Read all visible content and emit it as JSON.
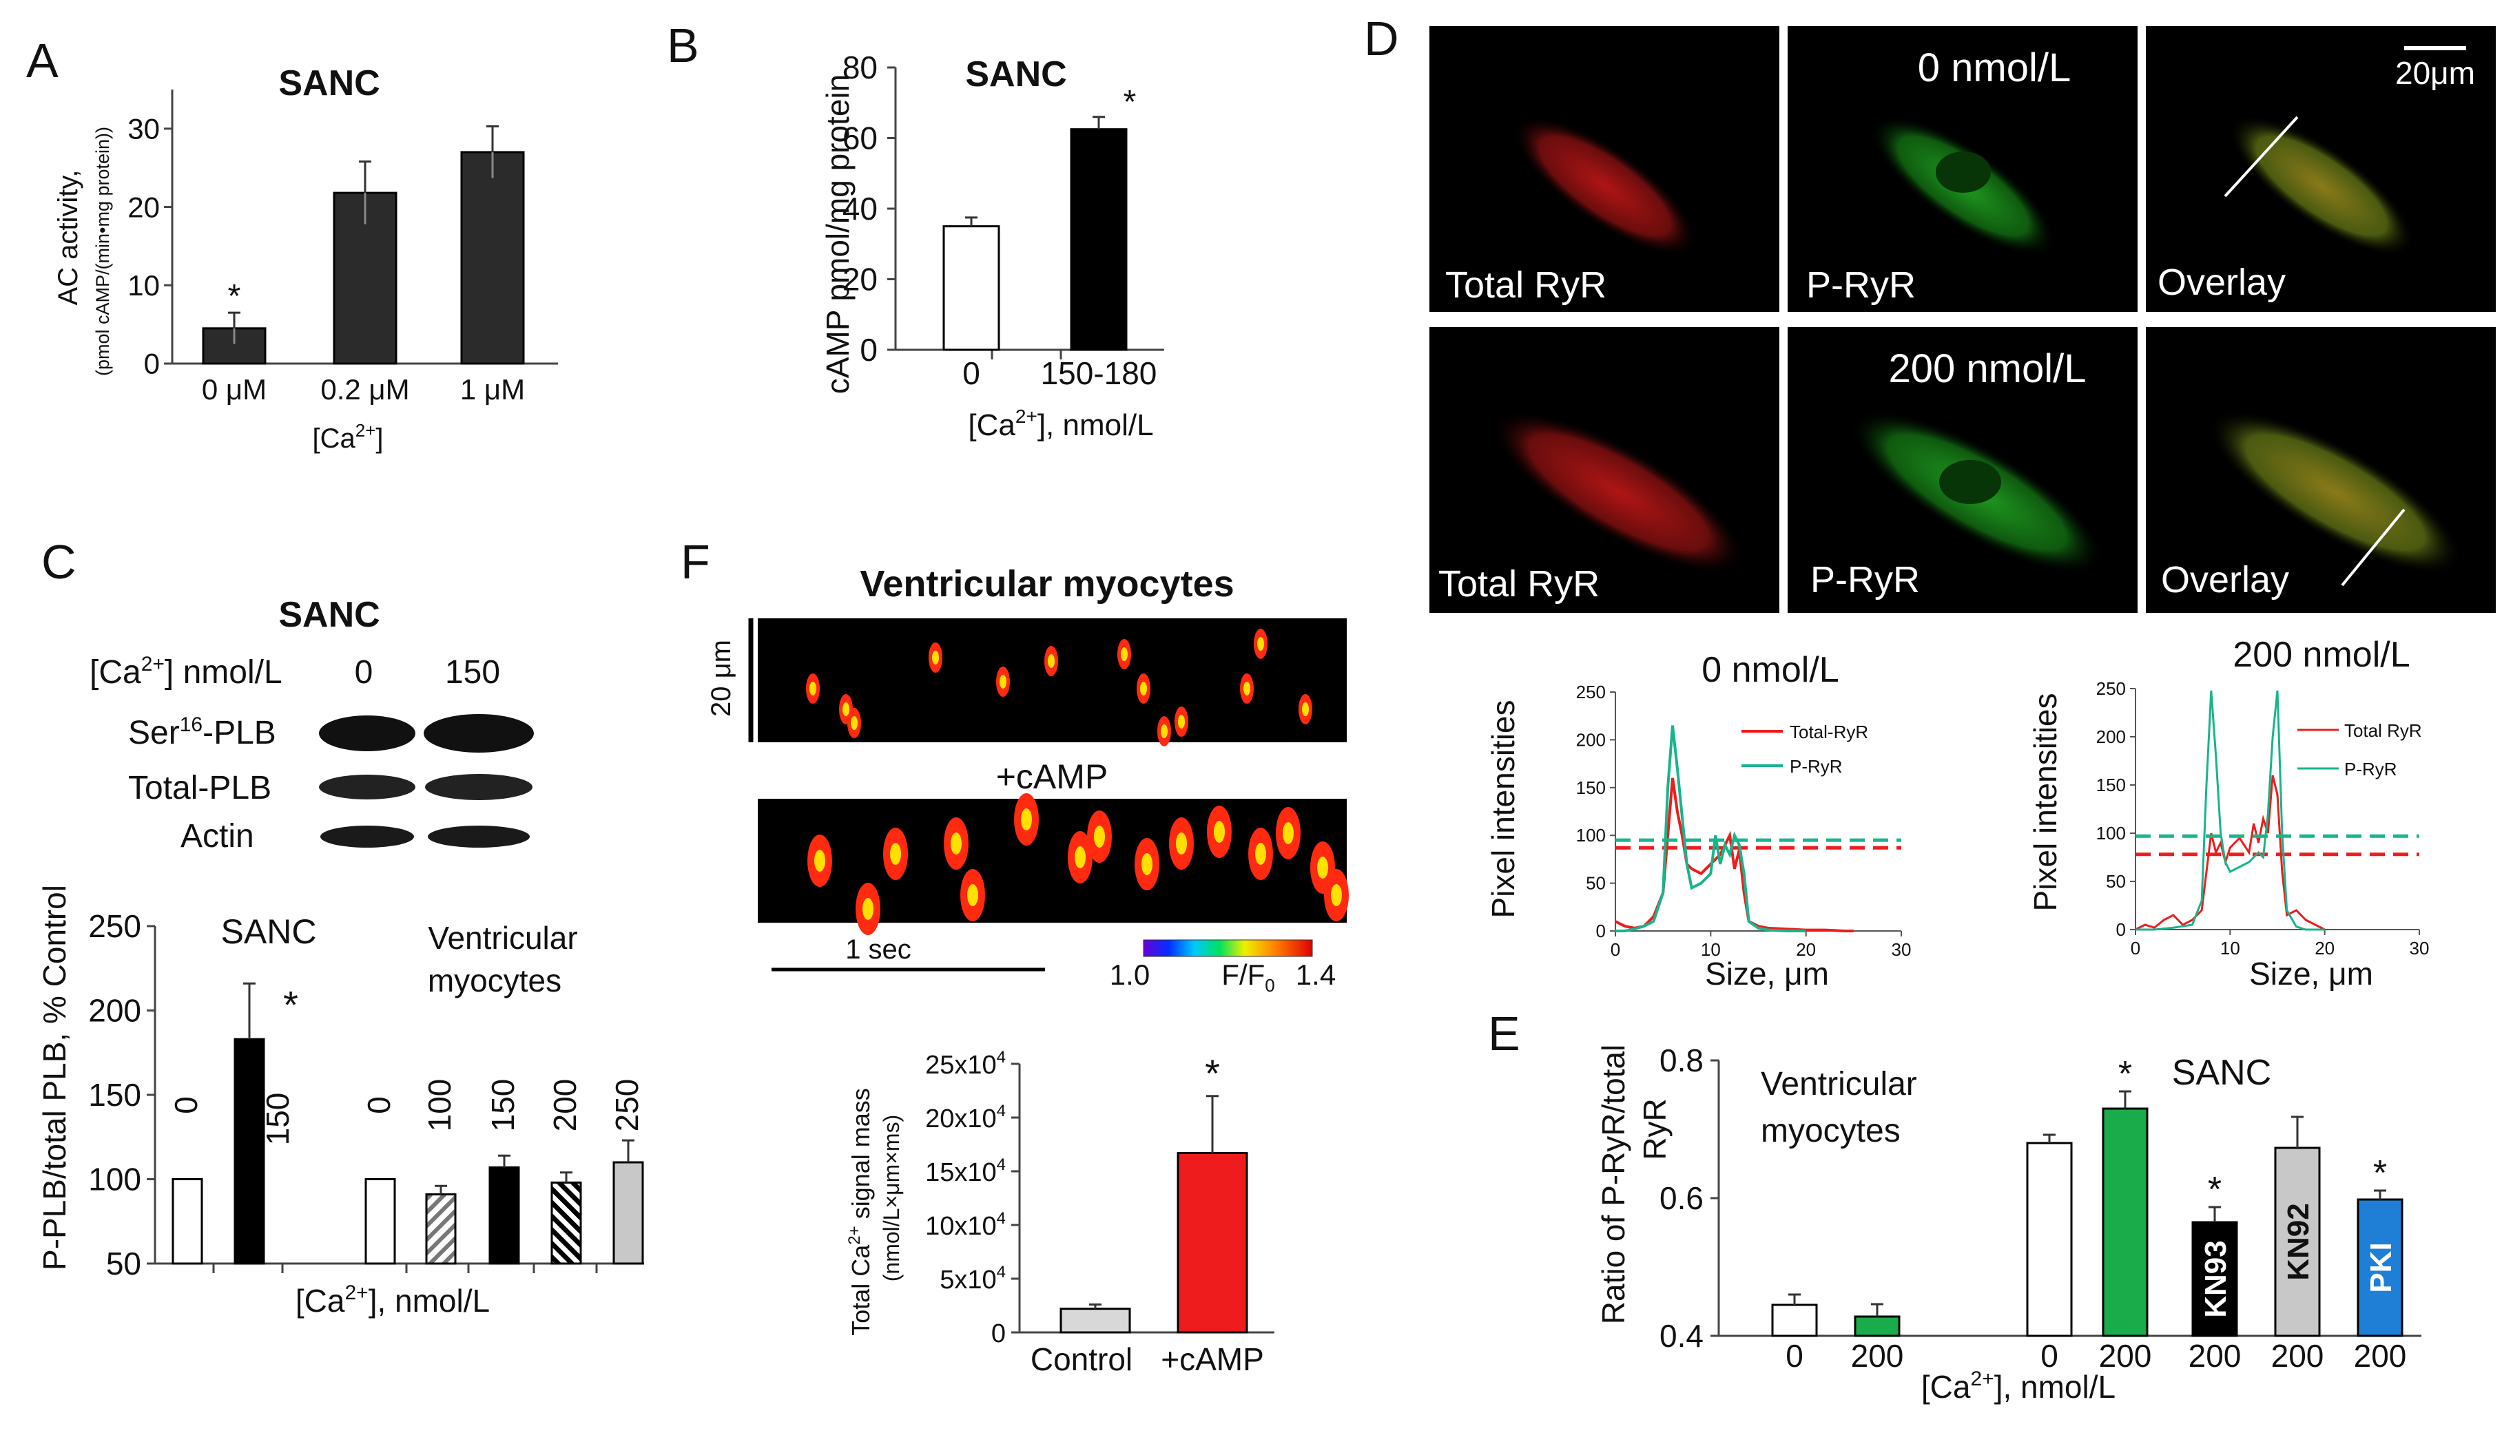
{
  "panels": {
    "A": {
      "letter": "A",
      "title": "SANC",
      "ylabel": "AC activity,",
      "ylabel2": "(pmol cAMP/(min•mg protein))",
      "xlabel": "[Ca",
      "xlabel_sup": "2+",
      "xlabel_end": "]",
      "star": "*"
    },
    "B": {
      "letter": "B",
      "title": "SANC",
      "ylabel": "cAMP pmol/mg protein",
      "xlabel": "[Ca",
      "xlabel_sup": "2+",
      "xlabel_end": "],  nmol/L",
      "star": "*"
    },
    "C": {
      "letter": "C",
      "title": "SANC",
      "blot_header": "[Ca",
      "blot_header_sup": "2+",
      "blot_header_end": "] nmol/L",
      "blot_lane1": "0",
      "blot_lane2": "150",
      "blot_row1_pre": "Ser",
      "blot_row1_sup": "16",
      "blot_row1_post": "-PLB",
      "blot_row2": "Total-PLB",
      "blot_row3": "Actin",
      "ylabel": "P-PLB/total PLB,  % Control",
      "xlabel": "[Ca",
      "xlabel_sup": "2+",
      "xlabel_end": "], nmol/L",
      "group1": "SANC",
      "group2a": "Ventricular",
      "group2b": "myocytes",
      "star": "*"
    },
    "D": {
      "letter": "D",
      "cond1": "0 nmol/L",
      "cond2": "200 nmol/L",
      "scale": "20μm",
      "lbl_total": "Total RyR",
      "lbl_p": "P-RyR",
      "lbl_overlay": "Overlay",
      "plot_ylabel": "Pixel intensities",
      "plot_xlabel": "Size, μm",
      "legend1": "Total-RyR",
      "legend2": "P-RyR",
      "legend1b": "Total RyR",
      "legend2b": "P-RyR"
    },
    "E": {
      "letter": "E",
      "ylabel": "Ratio of P-RyR/total",
      "ylabel2": "RyR",
      "xlabel": "[Ca",
      "xlabel_sup": "2+",
      "xlabel_end": "], nmol/L",
      "group1a": "Ventricular",
      "group1b": "myocytes",
      "group2": "SANC",
      "star": "*"
    },
    "F": {
      "letter": "F",
      "title": "Ventricular myocytes",
      "scale_y": "20 μm",
      "camp_label": "+cAMP",
      "time_scale": "1 sec",
      "cbar_min": "1.0",
      "cbar_mid": "F/F",
      "cbar_mid_sub": "0",
      "cbar_max": "1.4",
      "ylabel": "Total Ca",
      "ylabel_sup": "2+",
      "ylabel_end": " signal mass",
      "ylabel2": "(nmol/L×μm×ms)",
      "star": "*"
    }
  },
  "colors": {
    "bar_dark": "#2b2b2b",
    "bar_black": "#000000",
    "green": "#1aab4a",
    "gray": "#c8c8c8",
    "gray2": "#7f7f7f",
    "blue": "#1f7fd6",
    "red": "#ee1c1c",
    "teal": "#17b58c"
  },
  "chart_data": [
    {
      "id": "A",
      "type": "bar",
      "title": "SANC",
      "ylabel": "AC activity, (pmol cAMP/(min•mg protein))",
      "xlabel": "[Ca2+]",
      "categories": [
        "0 μM",
        "0.2 μM",
        "1 μM"
      ],
      "values": [
        4.5,
        21.8,
        27.0
      ],
      "errors": [
        2.0,
        4.0,
        3.3
      ],
      "ylim": [
        0,
        35
      ],
      "yticks": [
        "0",
        "10",
        "20",
        "30"
      ],
      "significant": [
        true,
        false,
        false
      ]
    },
    {
      "id": "B",
      "type": "bar",
      "title": "SANC",
      "ylabel": "cAMP pmol/mg protein",
      "xlabel": "[Ca2+], nmol/L",
      "categories": [
        "0",
        "150-180"
      ],
      "values": [
        35,
        62.5
      ],
      "errors": [
        2.5,
        3.5
      ],
      "ylim": [
        0,
        80
      ],
      "yticks": [
        "0",
        "20",
        "40",
        "60",
        "80"
      ],
      "fills": [
        "white",
        "black"
      ],
      "significant": [
        false,
        true
      ]
    },
    {
      "id": "C",
      "type": "bar",
      "ylabel": "P-PLB/total PLB, % Control",
      "xlabel": "[Ca2+], nmol/L",
      "groups": [
        "SANC",
        "Ventricular myocytes"
      ],
      "categories": [
        "0",
        "150",
        "0",
        "100",
        "150",
        "200",
        "250"
      ],
      "values": [
        100,
        183,
        100,
        91,
        107,
        98,
        110
      ],
      "errors": [
        0,
        33,
        0,
        5,
        7,
        6,
        13
      ],
      "ylim": [
        50,
        250
      ],
      "yticks": [
        "50",
        "100",
        "150",
        "200",
        "250"
      ],
      "fills": [
        "white",
        "black",
        "white",
        "hatch-gray",
        "black",
        "hatch-black",
        "gray"
      ],
      "significant": [
        false,
        true,
        false,
        false,
        false,
        false,
        false
      ]
    },
    {
      "id": "D1",
      "type": "line",
      "title": "0 nmol/L",
      "xlabel": "Size, μm",
      "ylabel": "Pixel intensities",
      "xlim": [
        0,
        30
      ],
      "ylim": [
        0,
        250
      ],
      "xticks": [
        "0",
        "10",
        "20",
        "30"
      ],
      "yticks": [
        "0",
        "50",
        "100",
        "150",
        "200",
        "250"
      ],
      "series": [
        {
          "name": "Total-RyR",
          "color": "#ee1c1c",
          "mean": 87,
          "x": [
            0,
            1,
            2,
            3,
            4,
            5,
            5.5,
            6,
            6.5,
            7,
            7.5,
            8,
            9,
            10,
            11,
            12,
            12.5,
            13,
            13.5,
            14,
            15,
            16,
            18,
            20,
            22,
            24,
            25
          ],
          "y": [
            10,
            5,
            3,
            5,
            15,
            40,
            100,
            160,
            125,
            100,
            70,
            65,
            60,
            70,
            80,
            100,
            65,
            85,
            40,
            10,
            5,
            3,
            2,
            1,
            1,
            0,
            0
          ]
        },
        {
          "name": "P-RyR",
          "color": "#17b58c",
          "mean": 95,
          "x": [
            0,
            1,
            2,
            3,
            4,
            5,
            5.5,
            6,
            6.5,
            7,
            7.5,
            8,
            9,
            10,
            10.5,
            11,
            11.5,
            12,
            12.5,
            13,
            13.5,
            14,
            15,
            16,
            18,
            20
          ],
          "y": [
            0,
            0,
            2,
            5,
            10,
            40,
            150,
            215,
            170,
            120,
            70,
            45,
            50,
            60,
            100,
            70,
            90,
            80,
            100,
            90,
            60,
            10,
            3,
            1,
            0,
            0
          ]
        }
      ]
    },
    {
      "id": "D2",
      "type": "line",
      "title": "200 nmol/L",
      "xlabel": "Size, μm",
      "ylabel": "Pixel intensities",
      "xlim": [
        0,
        30
      ],
      "ylim": [
        0,
        250
      ],
      "xticks": [
        "0",
        "10",
        "20",
        "30"
      ],
      "yticks": [
        "0",
        "50",
        "100",
        "150",
        "200",
        "250"
      ],
      "series": [
        {
          "name": "Total RyR",
          "color": "#ee1c1c",
          "mean": 78,
          "x": [
            0,
            1,
            2,
            3,
            4,
            5,
            6,
            7,
            7.5,
            8,
            8.5,
            9,
            9.5,
            10,
            11,
            12,
            12.5,
            13,
            13.5,
            14,
            14.5,
            15,
            15.5,
            16,
            17,
            18,
            19,
            20
          ],
          "y": [
            0,
            5,
            2,
            10,
            15,
            5,
            10,
            20,
            60,
            100,
            80,
            90,
            70,
            85,
            95,
            80,
            110,
            90,
            115,
            100,
            160,
            140,
            60,
            15,
            20,
            10,
            5,
            0
          ]
        },
        {
          "name": "P-RyR",
          "color": "#17b58c",
          "mean": 97,
          "x": [
            0,
            2,
            4,
            6,
            7,
            7.5,
            8,
            8.5,
            9,
            9.5,
            10,
            11,
            12,
            13,
            13.5,
            14,
            14.5,
            15,
            15.5,
            16,
            17,
            18,
            20
          ],
          "y": [
            0,
            0,
            2,
            5,
            30,
            150,
            248,
            180,
            100,
            70,
            60,
            65,
            70,
            80,
            75,
            120,
            200,
            248,
            100,
            20,
            3,
            0,
            0
          ]
        }
      ]
    },
    {
      "id": "E",
      "type": "bar",
      "ylabel": "Ratio of P-RyR/total RyR",
      "xlabel": "[Ca2+], nmol/L",
      "groups": [
        "Ventricular myocytes",
        "SANC"
      ],
      "categories": [
        "0",
        "200",
        "0",
        "200",
        "200",
        "200",
        "200"
      ],
      "inner_labels": [
        "",
        "",
        "",
        "",
        "KN93",
        "KN92",
        "PKI"
      ],
      "values": [
        0.445,
        0.428,
        0.68,
        0.73,
        0.565,
        0.673,
        0.598
      ],
      "errors": [
        0.015,
        0.018,
        0.012,
        0.025,
        0.022,
        0.045,
        0.013
      ],
      "ylim": [
        0.4,
        0.8
      ],
      "yticks": [
        "0.4",
        "0.6",
        "0.8"
      ],
      "fills": [
        "white",
        "green",
        "white",
        "green",
        "black",
        "gray",
        "blue"
      ],
      "significant": [
        false,
        false,
        false,
        true,
        true,
        false,
        true
      ]
    },
    {
      "id": "F",
      "type": "bar",
      "ylabel": "Total Ca2+ signal mass (nmol/L×μm×ms)",
      "categories": [
        "Control",
        "+cAMP"
      ],
      "values": [
        22000,
        167000
      ],
      "errors": [
        4000,
        53000
      ],
      "ylim": [
        0,
        250000
      ],
      "yticks_mantissa": [
        "0",
        "5x10",
        "10x10",
        "15x10",
        "20x10",
        "25x10"
      ],
      "yticks_exp": "4",
      "fills": [
        "lightgray",
        "red"
      ],
      "significant": [
        false,
        true
      ]
    }
  ]
}
